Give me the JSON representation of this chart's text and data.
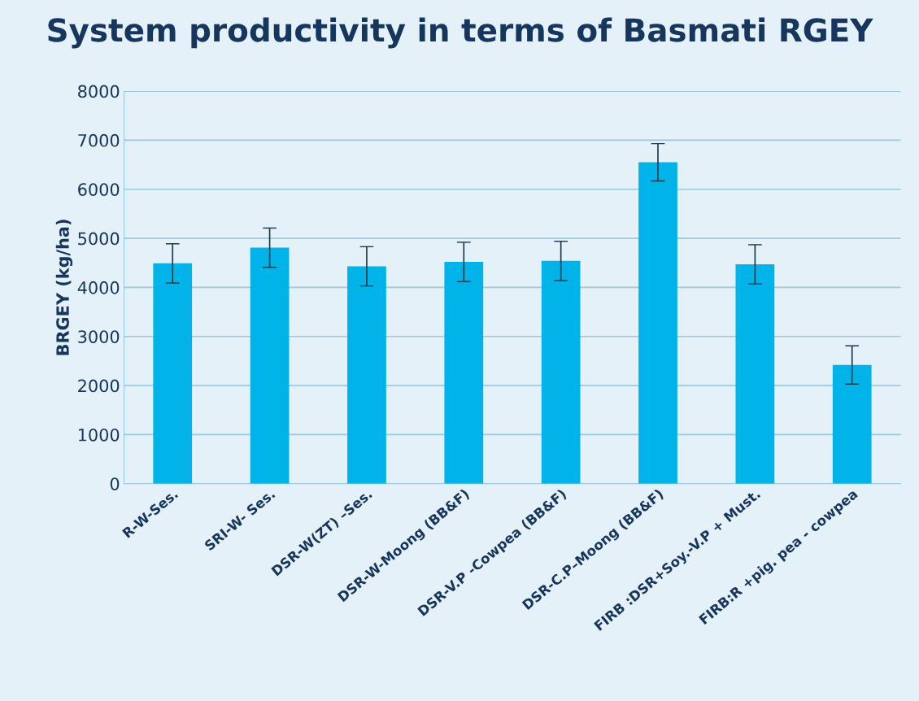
{
  "chart_data": {
    "type": "bar",
    "title": "System productivity in terms of Basmati RGEY",
    "ylabel": "BRGEY (kg/ha)",
    "categories": [
      "R-W-Ses.",
      "SRI-W- Ses.",
      "DSR-W(ZT) –Ses.",
      "DSR-W-Moong (BB&F)",
      "DSR-V.P -Cowpea (BB&F)",
      "DSR-C.P–Moong (BB&F)",
      "FIRB :DSR+Soy.-V.P + Must.",
      "FIRB:R +pig. pea - cowpea"
    ],
    "values": [
      4490,
      4810,
      4430,
      4520,
      4540,
      6550,
      4470,
      2420
    ],
    "errors": [
      400,
      400,
      400,
      400,
      400,
      380,
      400,
      390
    ],
    "color": "#00b4ea",
    "ylim": [
      0,
      8000
    ],
    "yticks": [
      0,
      1000,
      2000,
      3000,
      4000,
      5000,
      6000,
      7000,
      8000
    ],
    "grid": "y"
  }
}
